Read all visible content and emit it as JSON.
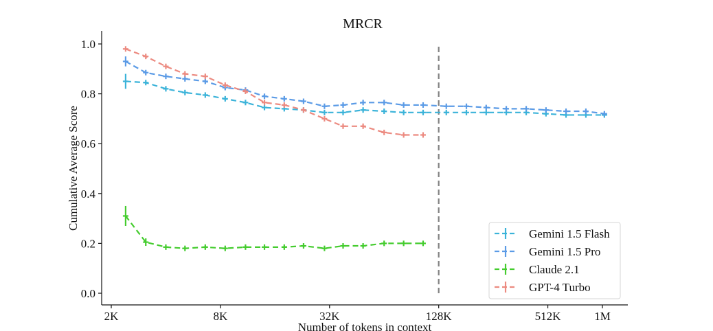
{
  "chart_data": {
    "type": "line",
    "title": "MRCR",
    "xlabel": "Number of tokens in context",
    "ylabel": "Cumulative Average Score",
    "xscale": "log2",
    "xunit": "tokens (K)",
    "xlim": [
      2.0,
      1400
    ],
    "ylim": [
      -0.05,
      1.05
    ],
    "xticks": [
      {
        "value": 2,
        "label": "2K"
      },
      {
        "value": 8,
        "label": "8K"
      },
      {
        "value": 32,
        "label": "32K"
      },
      {
        "value": 128,
        "label": "128K"
      },
      {
        "value": 512,
        "label": "512K"
      },
      {
        "value": 1024,
        "label": "1M"
      }
    ],
    "yticks": [
      {
        "value": 0.0,
        "label": "0.0"
      },
      {
        "value": 0.2,
        "label": "0.2"
      },
      {
        "value": 0.4,
        "label": "0.4"
      },
      {
        "value": 0.6,
        "label": "0.6"
      },
      {
        "value": 0.8,
        "label": "0.8"
      },
      {
        "value": 1.0,
        "label": "1.0"
      }
    ],
    "grid": false,
    "legend_position": "lower-right",
    "vline": {
      "x": 128,
      "style": "dashed",
      "color": "#808080"
    },
    "series": [
      {
        "name": "Gemini 1.5 Flash",
        "color": "#3bb3d9",
        "x": [
          2.4,
          3.1,
          4.0,
          5.1,
          6.6,
          8.5,
          11,
          14,
          18,
          23,
          30,
          38,
          49,
          64,
          82,
          105,
          141,
          182,
          234,
          302,
          389,
          500,
          645,
          830,
          1050
        ],
        "y": [
          0.85,
          0.845,
          0.82,
          0.805,
          0.795,
          0.78,
          0.765,
          0.745,
          0.74,
          0.735,
          0.725,
          0.725,
          0.735,
          0.73,
          0.725,
          0.725,
          0.725,
          0.725,
          0.725,
          0.725,
          0.725,
          0.72,
          0.715,
          0.715,
          0.715
        ],
        "err": [
          0.03,
          0.01,
          0.01,
          0.01,
          0.01,
          0.01,
          0.01,
          0.01,
          0.01,
          0.01,
          0.01,
          0.01,
          0.01,
          0.01,
          0.01,
          0.01,
          0.01,
          0.01,
          0.01,
          0.01,
          0.01,
          0.01,
          0.01,
          0.01,
          0.01
        ]
      },
      {
        "name": "Gemini 1.5 Pro",
        "color": "#5b9be6",
        "x": [
          2.4,
          3.1,
          4.0,
          5.1,
          6.6,
          8.5,
          11,
          14,
          18,
          23,
          30,
          38,
          49,
          64,
          82,
          105,
          141,
          182,
          234,
          302,
          389,
          500,
          645,
          830,
          1050
        ],
        "y": [
          0.93,
          0.885,
          0.87,
          0.86,
          0.85,
          0.825,
          0.815,
          0.79,
          0.78,
          0.77,
          0.75,
          0.755,
          0.765,
          0.765,
          0.755,
          0.755,
          0.75,
          0.75,
          0.745,
          0.74,
          0.74,
          0.735,
          0.73,
          0.73,
          0.72
        ],
        "err": [
          0.02,
          0.01,
          0.01,
          0.01,
          0.01,
          0.01,
          0.01,
          0.01,
          0.01,
          0.01,
          0.01,
          0.01,
          0.01,
          0.01,
          0.01,
          0.01,
          0.01,
          0.01,
          0.01,
          0.01,
          0.01,
          0.01,
          0.01,
          0.01,
          0.01
        ]
      },
      {
        "name": "Claude 2.1",
        "color": "#44cc2e",
        "x": [
          2.4,
          3.1,
          4.0,
          5.1,
          6.6,
          8.5,
          11,
          14,
          18,
          23,
          30,
          38,
          49,
          64,
          82,
          105
        ],
        "y": [
          0.31,
          0.205,
          0.185,
          0.18,
          0.185,
          0.18,
          0.185,
          0.185,
          0.185,
          0.19,
          0.18,
          0.19,
          0.19,
          0.2,
          0.2,
          0.2
        ],
        "err": [
          0.04,
          0.015,
          0.01,
          0.01,
          0.01,
          0.005,
          0.005,
          0.005,
          0.005,
          0.005,
          0.005,
          0,
          0,
          0,
          0,
          0
        ]
      },
      {
        "name": "GPT-4 Turbo",
        "color": "#ec8a80",
        "x": [
          2.4,
          3.1,
          4.0,
          5.1,
          6.6,
          8.5,
          11,
          14,
          18,
          23,
          30,
          38,
          49,
          64,
          82,
          105
        ],
        "y": [
          0.98,
          0.95,
          0.91,
          0.88,
          0.87,
          0.835,
          0.81,
          0.765,
          0.755,
          0.735,
          0.7,
          0.67,
          0.67,
          0.645,
          0.635,
          0.635
        ],
        "err": [
          0.01,
          0.01,
          0.01,
          0.01,
          0.01,
          0.01,
          0.01,
          0.01,
          0.005,
          0.005,
          0.005,
          0,
          0,
          0,
          0,
          0
        ]
      }
    ]
  }
}
